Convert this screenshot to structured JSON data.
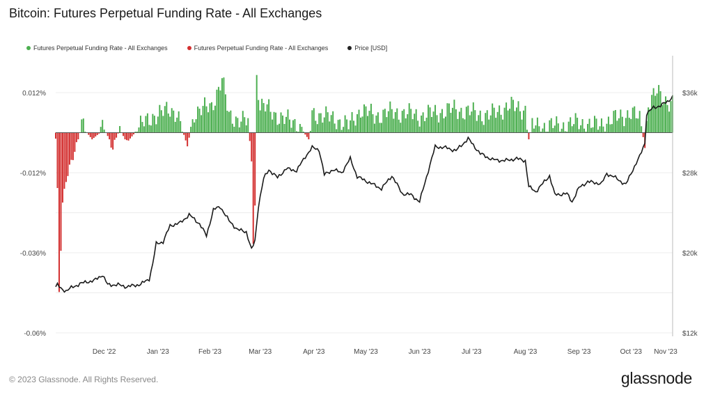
{
  "header": {
    "title": "Bitcoin: Futures Perpetual Funding Rate - All Exchanges"
  },
  "footer": {
    "copyright": "© 2023 Glassnode. All Rights Reserved.",
    "brand": "glassnode"
  },
  "chart_data": {
    "type": "bar",
    "title": "Bitcoin: Futures Perpetual Funding Rate - All Exchanges",
    "legend": [
      {
        "name": "Futures Perpetual Funding Rate - All Exchanges",
        "color": "#4caf50"
      },
      {
        "name": "Futures Perpetual Funding Rate - All Exchanges",
        "color": "#d32f2f"
      },
      {
        "name": "Price [USD]",
        "color": "#222222"
      }
    ],
    "legend_position": "top-left",
    "x_ticks": [
      "Dec '22",
      "Jan '23",
      "Feb '23",
      "Mar '23",
      "Apr '23",
      "May '23",
      "Jun '23",
      "Jul '23",
      "Aug '23",
      "Sep '23",
      "Oct '23",
      "Nov '23"
    ],
    "y_left_ticks": [
      {
        "value": 0.012,
        "label": "0.012%"
      },
      {
        "value": -0.012,
        "label": "-0.012%"
      },
      {
        "value": -0.036,
        "label": "-0.036%"
      },
      {
        "value": -0.06,
        "label": "-0.06%"
      }
    ],
    "y_right_ticks": [
      {
        "value": 36000,
        "label": "$36k"
      },
      {
        "value": 28000,
        "label": "$28k"
      },
      {
        "value": 20000,
        "label": "$20k"
      },
      {
        "value": 12000,
        "label": "$12k"
      }
    ],
    "y_left_range": [
      -0.06,
      0.018
    ],
    "y_right_range": [
      12000,
      36000
    ],
    "start_date": "2022-11-17",
    "end_date": "2023-11-08",
    "funding_anchors": [
      [
        "2022-11-17",
        -0.0018
      ],
      [
        "2022-11-18",
        -0.018
      ],
      [
        "2022-11-19",
        -0.048
      ],
      [
        "2022-11-21",
        -0.022
      ],
      [
        "2022-11-23",
        -0.014
      ],
      [
        "2022-11-26",
        -0.008
      ],
      [
        "2022-11-29",
        -0.004
      ],
      [
        "2022-12-02",
        0.002
      ],
      [
        "2022-12-08",
        -0.002
      ],
      [
        "2022-12-15",
        0.001
      ],
      [
        "2022-12-20",
        -0.004
      ],
      [
        "2022-12-24",
        0.001
      ],
      [
        "2022-12-28",
        -0.003
      ],
      [
        "2023-01-05",
        0.002
      ],
      [
        "2023-01-12",
        0.005
      ],
      [
        "2023-01-18",
        0.006
      ],
      [
        "2023-01-22",
        0.007
      ],
      [
        "2023-01-26",
        0.006
      ],
      [
        "2023-02-01",
        -0.004
      ],
      [
        "2023-02-05",
        0.006
      ],
      [
        "2023-02-10",
        0.007
      ],
      [
        "2023-02-15",
        0.008
      ],
      [
        "2023-02-18",
        0.012
      ],
      [
        "2023-02-21",
        0.016
      ],
      [
        "2023-02-25",
        0.005
      ],
      [
        "2023-03-03",
        0.004
      ],
      [
        "2023-03-08",
        0.003
      ],
      [
        "2023-03-10",
        -0.008
      ],
      [
        "2023-03-11",
        -0.032
      ],
      [
        "2023-03-12",
        -0.022
      ],
      [
        "2023-03-13",
        0.017
      ],
      [
        "2023-03-15",
        0.008
      ],
      [
        "2023-03-20",
        0.007
      ],
      [
        "2023-03-28",
        0.004
      ],
      [
        "2023-04-05",
        0.003
      ],
      [
        "2023-04-12",
        -0.002
      ],
      [
        "2023-04-14",
        0.006
      ],
      [
        "2023-04-20",
        0.005
      ],
      [
        "2023-04-28",
        0.004
      ],
      [
        "2023-05-05",
        0.002
      ],
      [
        "2023-05-12",
        0.007
      ],
      [
        "2023-05-20",
        0.005
      ],
      [
        "2023-05-28",
        0.006
      ],
      [
        "2023-06-05",
        0.006
      ],
      [
        "2023-06-15",
        0.005
      ],
      [
        "2023-06-25",
        0.006
      ],
      [
        "2023-07-05",
        0.007
      ],
      [
        "2023-07-15",
        0.006
      ],
      [
        "2023-07-25",
        0.005
      ],
      [
        "2023-08-05",
        0.008
      ],
      [
        "2023-08-15",
        0.007
      ],
      [
        "2023-08-17",
        -0.002
      ],
      [
        "2023-08-19",
        0.002
      ],
      [
        "2023-08-25",
        0.002
      ],
      [
        "2023-09-05",
        0.002
      ],
      [
        "2023-09-15",
        0.003
      ],
      [
        "2023-09-25",
        0.002
      ],
      [
        "2023-10-05",
        0.004
      ],
      [
        "2023-10-10",
        0.005
      ],
      [
        "2023-10-15",
        0.006
      ],
      [
        "2023-10-20",
        0.004
      ],
      [
        "2023-10-23",
        -0.004
      ],
      [
        "2023-10-25",
        0.009
      ],
      [
        "2023-10-30",
        0.012
      ],
      [
        "2023-11-03",
        0.01
      ],
      [
        "2023-11-08",
        0.009
      ]
    ],
    "price_anchors": [
      [
        "2022-11-17",
        16600
      ],
      [
        "2022-11-18",
        16800
      ],
      [
        "2022-11-20",
        16400
      ],
      [
        "2022-11-23",
        16200
      ],
      [
        "2022-11-26",
        16500
      ],
      [
        "2022-12-01",
        16900
      ],
      [
        "2022-12-05",
        17100
      ],
      [
        "2022-12-09",
        17200
      ],
      [
        "2022-12-14",
        17800
      ],
      [
        "2022-12-17",
        16800
      ],
      [
        "2022-12-23",
        16800
      ],
      [
        "2022-12-28",
        16600
      ],
      [
        "2023-01-05",
        16850
      ],
      [
        "2023-01-10",
        17400
      ],
      [
        "2023-01-12",
        18900
      ],
      [
        "2023-01-14",
        20900
      ],
      [
        "2023-01-18",
        21100
      ],
      [
        "2023-01-22",
        22700
      ],
      [
        "2023-01-28",
        23000
      ],
      [
        "2023-02-02",
        23800
      ],
      [
        "2023-02-08",
        22900
      ],
      [
        "2023-02-12",
        21700
      ],
      [
        "2023-02-16",
        24300
      ],
      [
        "2023-02-20",
        24600
      ],
      [
        "2023-02-25",
        23200
      ],
      [
        "2023-03-02",
        22300
      ],
      [
        "2023-03-07",
        22100
      ],
      [
        "2023-03-10",
        20300
      ],
      [
        "2023-03-12",
        21200
      ],
      [
        "2023-03-14",
        24700
      ],
      [
        "2023-03-17",
        27400
      ],
      [
        "2023-03-20",
        28300
      ],
      [
        "2023-03-25",
        27500
      ],
      [
        "2023-03-30",
        28400
      ],
      [
        "2023-04-05",
        28200
      ],
      [
        "2023-04-10",
        29600
      ],
      [
        "2023-04-14",
        30500
      ],
      [
        "2023-04-18",
        30300
      ],
      [
        "2023-04-21",
        27800
      ],
      [
        "2023-04-26",
        28300
      ],
      [
        "2023-05-01",
        28000
      ],
      [
        "2023-05-06",
        29400
      ],
      [
        "2023-05-10",
        27600
      ],
      [
        "2023-05-16",
        27100
      ],
      [
        "2023-05-24",
        26400
      ],
      [
        "2023-05-30",
        27700
      ],
      [
        "2023-06-05",
        25900
      ],
      [
        "2023-06-10",
        25800
      ],
      [
        "2023-06-15",
        25100
      ],
      [
        "2023-06-20",
        28200
      ],
      [
        "2023-06-24",
        30600
      ],
      [
        "2023-06-30",
        30500
      ],
      [
        "2023-07-06",
        30200
      ],
      [
        "2023-07-13",
        31400
      ],
      [
        "2023-07-20",
        29900
      ],
      [
        "2023-07-27",
        29300
      ],
      [
        "2023-08-03",
        29200
      ],
      [
        "2023-08-10",
        29400
      ],
      [
        "2023-08-15",
        29200
      ],
      [
        "2023-08-17",
        26600
      ],
      [
        "2023-08-21",
        26100
      ],
      [
        "2023-08-29",
        27700
      ],
      [
        "2023-09-01",
        25800
      ],
      [
        "2023-09-08",
        25900
      ],
      [
        "2023-09-11",
        25100
      ],
      [
        "2023-09-15",
        26500
      ],
      [
        "2023-09-20",
        27100
      ],
      [
        "2023-09-28",
        26900
      ],
      [
        "2023-10-01",
        27900
      ],
      [
        "2023-10-05",
        27600
      ],
      [
        "2023-10-12",
        26800
      ],
      [
        "2023-10-16",
        28300
      ],
      [
        "2023-10-20",
        29600
      ],
      [
        "2023-10-23",
        31000
      ],
      [
        "2023-10-24",
        33900
      ],
      [
        "2023-10-28",
        34500
      ],
      [
        "2023-11-01",
        34700
      ],
      [
        "2023-11-05",
        35100
      ],
      [
        "2023-11-08",
        35600
      ]
    ]
  }
}
